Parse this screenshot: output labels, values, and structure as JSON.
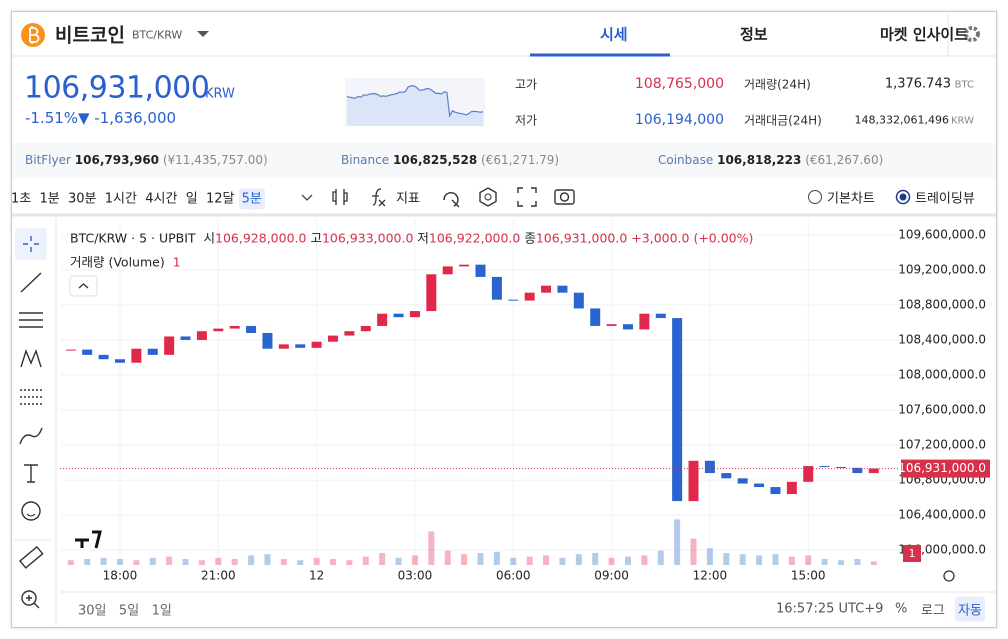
{
  "header": {
    "title": "비트코인",
    "pair": "BTC/KRW",
    "tabs": [
      "시세",
      "정보",
      "마켓 인사이트"
    ]
  },
  "price": {
    "current": "106,931,000",
    "currency": "KRW",
    "change_rate": "-1.51%",
    "change": "▼ -1,636,000"
  },
  "stats": {
    "high_label": "고가",
    "high": "108,765,000",
    "low_label": "저가",
    "low": "106,194,000",
    "volume_label": "거래량(24H)",
    "volume": "1,376.743",
    "volume_unit": "BTC",
    "amount_label": "거래대금(24H)",
    "amount": "148,332,061,496",
    "amount_unit": "KRW"
  },
  "exchanges": [
    {
      "name": "BitFlyer",
      "price": "106,793,960",
      "local": "(¥11,435,757.00)"
    },
    {
      "name": "Binance",
      "price": "106,825,528",
      "local": "(€61,271.79)"
    },
    {
      "name": "Coinbase",
      "price": "106,818,223",
      "local": "(€61,267.60)"
    }
  ],
  "toolbar": {
    "intervals": [
      "1초",
      "1분",
      "30분",
      "1시간",
      "4시간",
      "일",
      "12달",
      "5분"
    ],
    "indicator": "지표",
    "chart_modes": [
      "기본차트",
      "트레이딩뷰"
    ]
  },
  "chart_data": {
    "type": "candlestick",
    "legend": {
      "symbol": "BTC/KRW · 5 · UPBIT",
      "open_label": "시",
      "open": "106,928,000.0",
      "high_label": "고",
      "high": "106,933,000.0",
      "low_label": "저",
      "low": "106,922,000.0",
      "close_label": "종",
      "close": "106,931,000.0",
      "change": "+3,000.0 (+0.00%)"
    },
    "volume_label": "거래량 (Volume)",
    "volume_count": "1",
    "volume_scale_label": "1",
    "x": [
      16.5,
      17,
      17.5,
      18,
      18.5,
      19,
      19.5,
      20,
      20.5,
      21,
      21.5,
      22,
      22.5,
      23,
      23.5,
      24,
      24.5,
      25,
      25.5,
      26,
      26.5,
      27,
      27.5,
      28,
      28.5,
      29,
      29.5,
      30,
      30.5,
      31,
      31.5,
      32,
      32.5,
      33,
      33.5,
      34,
      34.5,
      35,
      35.5,
      36,
      36.5,
      37,
      37.5,
      38,
      38.5,
      39,
      39.5,
      40,
      40.5,
      41
    ],
    "values": [
      108290000,
      108230000,
      108180000,
      108140000,
      108300000,
      108230000,
      108440000,
      108400000,
      108500000,
      108530000,
      108560000,
      108480000,
      108300000,
      108350000,
      108310000,
      108380000,
      108450000,
      108500000,
      108560000,
      108700000,
      108660000,
      108730000,
      109150000,
      109240000,
      109260000,
      109120000,
      108860000,
      108850000,
      108940000,
      109020000,
      108940000,
      108760000,
      108560000,
      108580000,
      108520000,
      108700000,
      108650000,
      106560000,
      107020000,
      106880000,
      106820000,
      106760000,
      106720000,
      106640000,
      106780000,
      106960000,
      106950000,
      106940000,
      106880000,
      106931000
    ],
    "volume": [
      4,
      5,
      6,
      5,
      4,
      6,
      7,
      5,
      4,
      6,
      5,
      8,
      9,
      5,
      4,
      6,
      5,
      4,
      7,
      10,
      6,
      8,
      28,
      12,
      9,
      10,
      11,
      6,
      7,
      8,
      6,
      9,
      10,
      6,
      7,
      8,
      12,
      38,
      22,
      14,
      10,
      9,
      8,
      9,
      7,
      8,
      5,
      4,
      5,
      3
    ],
    "last_price": {
      "value": 106931000,
      "label": "106,931,000.0"
    },
    "xlim": [
      16.17,
      41.8
    ],
    "ylim": [
      105830000,
      109770000
    ],
    "xticks": [
      {
        "value": 18,
        "label": "18:00"
      },
      {
        "value": 21,
        "label": "21:00"
      },
      {
        "value": 24,
        "label": "12"
      },
      {
        "value": 27,
        "label": "03:00"
      },
      {
        "value": 30,
        "label": "06:00"
      },
      {
        "value": 33,
        "label": "09:00"
      },
      {
        "value": 36,
        "label": "12:00"
      },
      {
        "value": 39,
        "label": "15:00"
      }
    ],
    "yticks": [
      {
        "value": 109600000,
        "label": "109,600,000.0"
      },
      {
        "value": 109200000,
        "label": "109,200,000.0"
      },
      {
        "value": 108800000,
        "label": "108,800,000.0"
      },
      {
        "value": 108400000,
        "label": "108,400,000.0"
      },
      {
        "value": 108000000,
        "label": "108,000,000.0"
      },
      {
        "value": 107600000,
        "label": "107,600,000.0"
      },
      {
        "value": 107200000,
        "label": "107,200,000.0"
      },
      {
        "value": 106800000,
        "label": "106,800,000.0"
      },
      {
        "value": 106400000,
        "label": "106,400,000.0"
      },
      {
        "value": 106000000,
        "label": "106,000,000.0"
      }
    ],
    "grid": true,
    "up_color": "#e0294a",
    "down_color": "#2a64d0"
  },
  "footer": {
    "ranges": [
      "30일",
      "5일",
      "1일"
    ],
    "time": "16:57:25 UTC+9",
    "options": [
      "%",
      "로그",
      "자동"
    ]
  }
}
